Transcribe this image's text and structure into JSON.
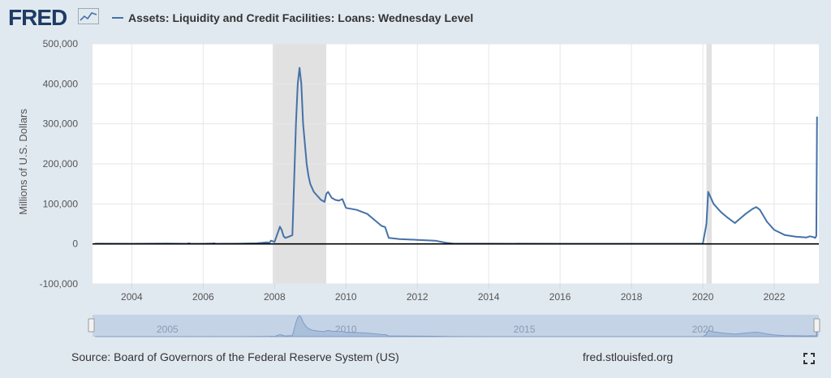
{
  "header": {
    "logo_text": "FRED",
    "logo_icon": "chart-line-icon",
    "legend_label": "Assets: Liquidity and Credit Facilities: Loans: Wednesday Level"
  },
  "footer": {
    "source": "Source: Board of Governors of the Federal Reserve System (US)",
    "url": "fred.stlouisfed.org",
    "fullscreen_icon": "fullscreen-icon"
  },
  "colors": {
    "series": "#4572a7",
    "recession": "#e1e1e1",
    "background": "#e1e9f0",
    "plot": "#ffffff",
    "navigator": "#c5d3e6"
  },
  "chart_data": {
    "type": "line",
    "title": "",
    "xlabel": "",
    "ylabel": "Millions of U.S. Dollars",
    "xlim": [
      2002.9,
      2023.25
    ],
    "ylim": [
      -100000,
      500000
    ],
    "x_ticks": [
      2004,
      2006,
      2008,
      2010,
      2012,
      2014,
      2016,
      2018,
      2020,
      2022
    ],
    "y_ticks": [
      -100000,
      0,
      100000,
      200000,
      300000,
      400000,
      500000
    ],
    "y_tick_labels": [
      "-100,000",
      "0",
      "100,000",
      "200,000",
      "300,000",
      "400,000",
      "500,000"
    ],
    "grid": true,
    "recessions": [
      [
        2007.95,
        2009.45
      ],
      [
        2020.1,
        2020.25
      ]
    ],
    "navigator_labels": [
      "2005",
      "2010",
      "2015",
      "2020"
    ],
    "series": [
      {
        "name": "Assets: Liquidity and Credit Facilities: Loans: Wednesday Level",
        "x": [
          2002.97,
          2004.0,
          2005.0,
          2005.55,
          2005.6,
          2005.65,
          2006.0,
          2006.25,
          2006.3,
          2006.35,
          2007.0,
          2007.5,
          2007.8,
          2007.85,
          2007.9,
          2008.0,
          2008.1,
          2008.15,
          2008.2,
          2008.25,
          2008.3,
          2008.4,
          2008.5,
          2008.6,
          2008.65,
          2008.7,
          2008.75,
          2008.8,
          2008.85,
          2008.9,
          2008.95,
          2009.0,
          2009.05,
          2009.1,
          2009.2,
          2009.3,
          2009.4,
          2009.45,
          2009.5,
          2009.6,
          2009.7,
          2009.8,
          2009.9,
          2010.0,
          2010.3,
          2010.6,
          2010.8,
          2011.0,
          2011.1,
          2011.2,
          2011.5,
          2012.0,
          2012.5,
          2012.8,
          2013.0,
          2014.0,
          2016.0,
          2018.0,
          2020.0,
          2020.1,
          2020.15,
          2020.2,
          2020.3,
          2020.5,
          2020.7,
          2020.9,
          2021.0,
          2021.2,
          2021.4,
          2021.5,
          2021.6,
          2021.8,
          2022.0,
          2022.3,
          2022.6,
          2022.9,
          2023.0,
          2023.1,
          2023.15,
          2023.18,
          2023.2
        ],
        "values": [
          500,
          300,
          800,
          300,
          1500,
          400,
          400,
          800,
          1500,
          400,
          600,
          1500,
          4000,
          2000,
          8000,
          5000,
          30000,
          43000,
          35000,
          20000,
          15000,
          18000,
          22000,
          300000,
          400000,
          440000,
          400000,
          300000,
          250000,
          200000,
          170000,
          150000,
          140000,
          130000,
          120000,
          110000,
          105000,
          125000,
          130000,
          115000,
          110000,
          108000,
          112000,
          90000,
          85000,
          75000,
          60000,
          45000,
          42000,
          15000,
          12000,
          10000,
          8000,
          3000,
          1000,
          500,
          300,
          300,
          300,
          50000,
          130000,
          120000,
          100000,
          80000,
          65000,
          52000,
          60000,
          75000,
          88000,
          92000,
          85000,
          55000,
          35000,
          22000,
          18000,
          16000,
          19000,
          17000,
          15000,
          20000,
          318000
        ]
      }
    ]
  }
}
